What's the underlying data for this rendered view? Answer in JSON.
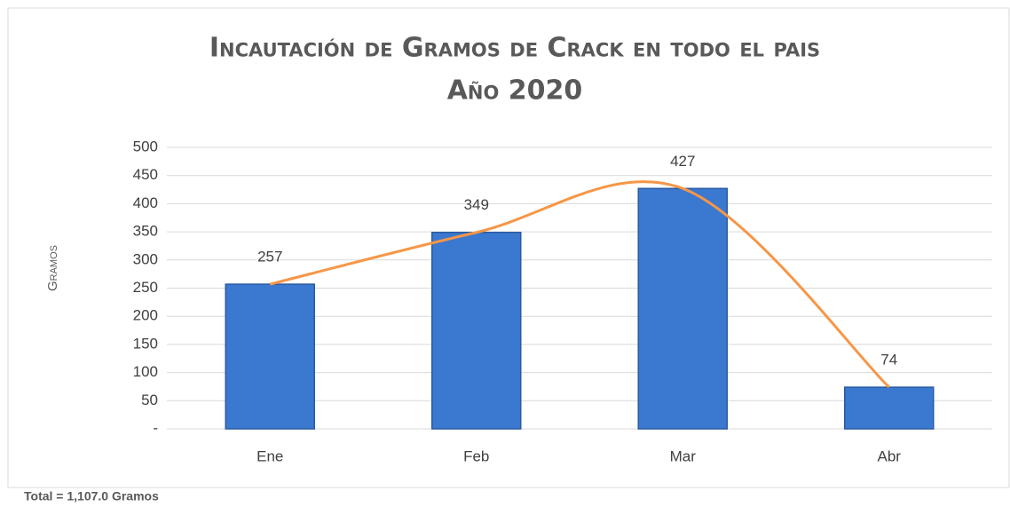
{
  "chart_data": {
    "type": "bar",
    "title": "Incautación de Gramos de Crack en todo el pais",
    "subtitle": "Año 2020",
    "y_label": "Gramos",
    "note": "Total = 1,107.0 Gramos",
    "categories": [
      "Ene",
      "Feb",
      "Mar",
      "Abr"
    ],
    "values": [
      257,
      349,
      427,
      74
    ],
    "color": "#3b78cf",
    "trend_color": "#f79646",
    "ylim": [
      0,
      500
    ],
    "yticks": [
      {
        "value": 0,
        "label": "-"
      },
      50,
      100,
      150,
      200,
      250,
      300,
      350,
      400,
      450,
      500
    ],
    "grid": true
  }
}
